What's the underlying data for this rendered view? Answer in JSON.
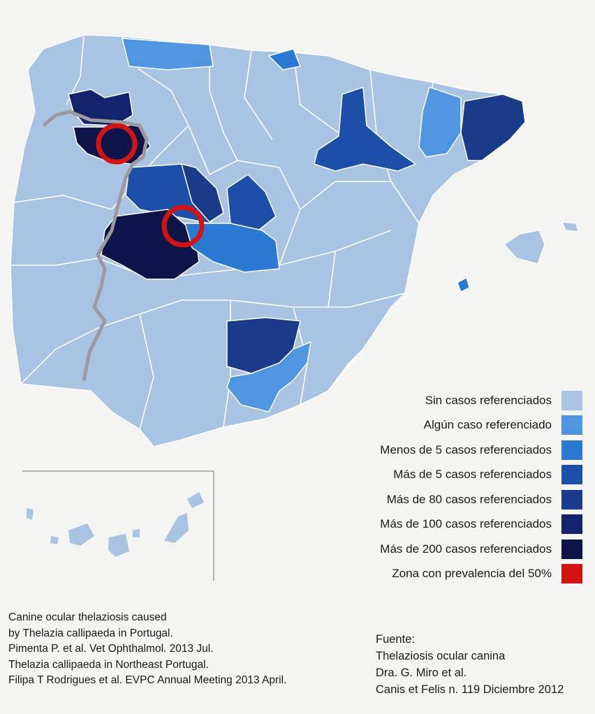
{
  "colors": {
    "sin_casos": "#a9c3e3",
    "algun_caso": "#4f95df",
    "menos_5": "#2a79d3",
    "mas_5": "#1d4fa8",
    "mas_80": "#1a3a8a",
    "mas_100": "#12226b",
    "mas_200": "#0c1448",
    "prevalencia_50": "#d01414",
    "border": "#9a9aa0"
  },
  "legend": {
    "items": [
      {
        "label": "Sin casos referenciados",
        "color": "#a9c3e3"
      },
      {
        "label": "Algún caso referenciado",
        "color": "#4f95df"
      },
      {
        "label": "Menos de 5 casos referenciados",
        "color": "#2a79d3"
      },
      {
        "label": "Más de 5 casos referenciados",
        "color": "#1d4fa8"
      },
      {
        "label": "Más de 80 casos referenciados",
        "color": "#1a3a8a"
      },
      {
        "label": "Más de 100 casos referenciados",
        "color": "#12226b"
      },
      {
        "label": "Más de 200 casos referenciados",
        "color": "#0c1448"
      },
      {
        "label": "Zona con prevalencia del 50%",
        "color": "#d01414"
      }
    ]
  },
  "references": {
    "lines": [
      "Canine ocular thelaziosis caused",
      "by Thelazia callipaeda in Portugal.",
      "Pimenta P. et al. Vet Ophthalmol. 2013 Jul.",
      "Thelazia callipaeda in Northeast Portugal.",
      "Filipa T Rodrigues et al. EVPC Annual Meeting 2013 April."
    ]
  },
  "source": {
    "lines": [
      "Fuente:",
      "Thelaziosis ocular canina",
      "Dra. G. Miro et al.",
      "Canis et Felis n. 119 Diciembre 2012"
    ]
  }
}
